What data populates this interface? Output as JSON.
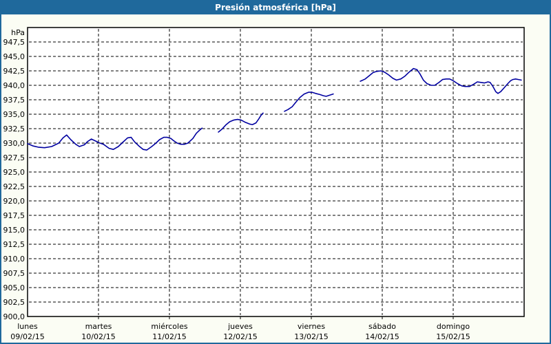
{
  "window": {
    "title": "Presión atmosférica [hPa]"
  },
  "colors": {
    "title_bar": "#1f699c",
    "title_text": "#ffffff",
    "frame": "#1f699c",
    "page_background": "#fbfdf4",
    "plot_background": "#ffffff",
    "grid": "#000000",
    "axis_text": "#000000",
    "line": "#0000a0"
  },
  "y_axis": {
    "unit_label": "hPa",
    "ticks": [
      {
        "label": "947,5",
        "value": 947.5
      },
      {
        "label": "945,0",
        "value": 945.0
      },
      {
        "label": "942,5",
        "value": 942.5
      },
      {
        "label": "940,0",
        "value": 940.0
      },
      {
        "label": "937,5",
        "value": 937.5
      },
      {
        "label": "935,0",
        "value": 935.0
      },
      {
        "label": "932,5",
        "value": 932.5
      },
      {
        "label": "930,0",
        "value": 930.0
      },
      {
        "label": "927,5",
        "value": 927.5
      },
      {
        "label": "925,0",
        "value": 925.0
      },
      {
        "label": "922,5",
        "value": 922.5
      },
      {
        "label": "920,0",
        "value": 920.0
      },
      {
        "label": "917,5",
        "value": 917.5
      },
      {
        "label": "915,0",
        "value": 915.0
      },
      {
        "label": "912,5",
        "value": 912.5
      },
      {
        "label": "910,0",
        "value": 910.0
      },
      {
        "label": "907,5",
        "value": 907.5
      },
      {
        "label": "905,0",
        "value": 905.0
      },
      {
        "label": "902,5",
        "value": 902.5
      },
      {
        "label": "900,0",
        "value": 900.0
      }
    ]
  },
  "x_axis": {
    "days": [
      {
        "name": "lunes",
        "date": "09/02/15"
      },
      {
        "name": "martes",
        "date": "10/02/15"
      },
      {
        "name": "miércoles",
        "date": "11/02/15"
      },
      {
        "name": "jueves",
        "date": "12/02/15"
      },
      {
        "name": "viernes",
        "date": "13/02/15"
      },
      {
        "name": "sábado",
        "date": "14/02/15"
      },
      {
        "name": "domingo",
        "date": "15/02/15"
      }
    ]
  },
  "chart_data": {
    "type": "line",
    "title": "Presión atmosférica [hPa]",
    "ylabel": "hPa",
    "xlabel": "",
    "ylim": [
      900,
      950
    ],
    "y_tick_step": 2.5,
    "x_range_days": 7,
    "x_unit": "days",
    "grid": "dashed",
    "legend": "none",
    "x_tick_labels": [
      "lunes 09/02/15",
      "martes 10/02/15",
      "miércoles 11/02/15",
      "jueves 12/02/15",
      "viernes 13/02/15",
      "sábado 14/02/15",
      "domingo 15/02/15"
    ],
    "series": [
      {
        "name": "Presión atmosférica",
        "unit": "hPa",
        "color": "#0000a0",
        "segments": [
          [
            [
              0,
              929.9
            ],
            [
              0.08,
              929.5
            ],
            [
              0.15,
              929.3
            ],
            [
              0.24,
              929.2
            ],
            [
              0.34,
              929.4
            ],
            [
              0.44,
              930.0
            ],
            [
              0.5,
              930.9
            ],
            [
              0.55,
              931.4
            ],
            [
              0.61,
              930.6
            ],
            [
              0.68,
              929.8
            ],
            [
              0.73,
              929.4
            ],
            [
              0.8,
              929.7
            ],
            [
              0.85,
              930.3
            ],
            [
              0.9,
              930.7
            ],
            [
              0.97,
              930.3
            ],
            [
              1.0,
              930.1
            ],
            [
              1.07,
              929.8
            ],
            [
              1.15,
              929.1
            ],
            [
              1.21,
              928.9
            ],
            [
              1.28,
              929.4
            ],
            [
              1.33,
              930.0
            ],
            [
              1.41,
              930.9
            ],
            [
              1.46,
              931.0
            ],
            [
              1.51,
              930.2
            ],
            [
              1.57,
              929.5
            ],
            [
              1.63,
              928.9
            ],
            [
              1.68,
              928.8
            ],
            [
              1.75,
              929.4
            ],
            [
              1.81,
              930.0
            ],
            [
              1.86,
              930.6
            ],
            [
              1.92,
              931.0
            ],
            [
              1.97,
              931.0
            ],
            [
              2.02,
              930.8
            ],
            [
              2.06,
              930.4
            ],
            [
              2.11,
              930.0
            ],
            [
              2.16,
              929.8
            ],
            [
              2.21,
              929.8
            ],
            [
              2.26,
              930.0
            ],
            [
              2.33,
              930.8
            ],
            [
              2.38,
              931.7
            ],
            [
              2.43,
              932.3
            ],
            [
              2.46,
              932.6
            ]
          ],
          [
            [
              2.69,
              931.9
            ],
            [
              2.74,
              932.4
            ],
            [
              2.8,
              933.2
            ],
            [
              2.85,
              933.7
            ],
            [
              2.91,
              934.0
            ],
            [
              2.96,
              934.1
            ],
            [
              3.01,
              934.0
            ],
            [
              3.07,
              933.6
            ],
            [
              3.13,
              933.3
            ],
            [
              3.17,
              933.2
            ],
            [
              3.22,
              933.5
            ],
            [
              3.26,
              934.2
            ],
            [
              3.29,
              934.8
            ],
            [
              3.32,
              935.2
            ]
          ],
          [
            [
              3.62,
              935.5
            ],
            [
              3.67,
              935.8
            ],
            [
              3.73,
              936.3
            ],
            [
              3.79,
              937.2
            ],
            [
              3.84,
              937.9
            ],
            [
              3.9,
              938.5
            ],
            [
              3.96,
              938.8
            ],
            [
              4.01,
              938.8
            ],
            [
              4.06,
              938.6
            ],
            [
              4.12,
              938.4
            ],
            [
              4.17,
              938.2
            ],
            [
              4.21,
              938.1
            ],
            [
              4.26,
              938.3
            ],
            [
              4.31,
              938.5
            ]
          ],
          [
            [
              4.69,
              940.7
            ],
            [
              4.76,
              941.1
            ],
            [
              4.82,
              941.7
            ],
            [
              4.87,
              942.2
            ],
            [
              4.92,
              942.4
            ],
            [
              4.98,
              942.5
            ],
            [
              5.03,
              942.3
            ],
            [
              5.09,
              941.8
            ],
            [
              5.15,
              941.2
            ],
            [
              5.2,
              940.9
            ],
            [
              5.26,
              941.1
            ],
            [
              5.32,
              941.6
            ],
            [
              5.38,
              942.3
            ],
            [
              5.44,
              942.9
            ],
            [
              5.49,
              942.7
            ],
            [
              5.53,
              942.0
            ],
            [
              5.58,
              940.9
            ],
            [
              5.63,
              940.3
            ],
            [
              5.69,
              940.0
            ],
            [
              5.74,
              940.0
            ],
            [
              5.8,
              940.5
            ],
            [
              5.85,
              941.0
            ],
            [
              5.9,
              941.1
            ],
            [
              5.95,
              941.1
            ],
            [
              6.0,
              940.8
            ],
            [
              6.06,
              940.3
            ],
            [
              6.12,
              939.9
            ],
            [
              6.17,
              939.8
            ],
            [
              6.23,
              939.8
            ],
            [
              6.29,
              940.2
            ],
            [
              6.34,
              940.6
            ],
            [
              6.39,
              940.5
            ],
            [
              6.44,
              940.4
            ],
            [
              6.49,
              940.6
            ],
            [
              6.52,
              940.5
            ],
            [
              6.56,
              939.8
            ],
            [
              6.6,
              938.9
            ],
            [
              6.63,
              938.6
            ],
            [
              6.67,
              938.9
            ],
            [
              6.72,
              939.6
            ],
            [
              6.77,
              940.3
            ],
            [
              6.81,
              940.8
            ],
            [
              6.84,
              941.0
            ],
            [
              6.88,
              941.1
            ],
            [
              6.92,
              941.0
            ],
            [
              6.96,
              940.9
            ]
          ]
        ]
      }
    ]
  }
}
